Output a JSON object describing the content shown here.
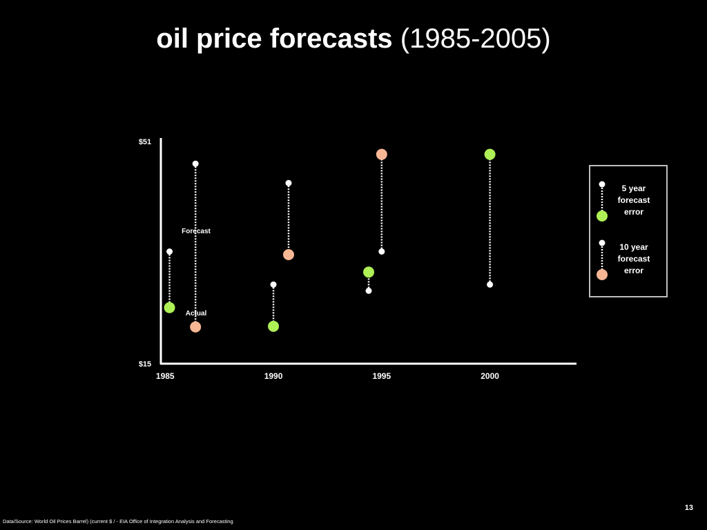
{
  "title": {
    "bold": "oil price forecasts",
    "light": "(1985-2005)"
  },
  "footer": {
    "source": "Data/Source: World Oil Prices Barrel) (current $ / - EIA Office of Integration Analysis and Forecasting"
  },
  "page_number": "13",
  "legend": {
    "five_year": {
      "label": "5 year forecast error",
      "color": "#aef055"
    },
    "ten_year": {
      "label": "10 year forecast error",
      "color": "#f7b795"
    }
  },
  "chart_data": {
    "type": "scatter",
    "title": "oil price forecasts (1985-2005)",
    "xlabel": "",
    "ylabel": "",
    "x_ticks": [
      "1985",
      "1990",
      "1995",
      "2000"
    ],
    "y_ticks": [
      "$51",
      "$15"
    ],
    "xlim": [
      1984.8,
      2004
    ],
    "ylim": [
      15,
      51
    ],
    "grid": false,
    "legend_position": "right",
    "annotations": [
      {
        "text": "Forecast",
        "target": "1985 5-year forecast"
      },
      {
        "text": "Actual",
        "target": "1985 5-year actual"
      }
    ],
    "series": [
      {
        "name": "5 year forecast error",
        "color": "#aef055",
        "points": [
          {
            "x": 1985.2,
            "forecast": 33,
            "actual": 24
          },
          {
            "x": 1990.0,
            "forecast": 27.7,
            "actual": 21
          },
          {
            "x": 1994.4,
            "forecast": 26.7,
            "actual": 29.7
          },
          {
            "x": 2000.0,
            "forecast": 27.7,
            "actual": 48.6
          }
        ]
      },
      {
        "name": "10 year forecast error",
        "color": "#f7b795",
        "points": [
          {
            "x": 1986.4,
            "forecast": 47.1,
            "actual": 20.9
          },
          {
            "x": 1990.7,
            "forecast": 44,
            "actual": 32.5
          },
          {
            "x": 1995.0,
            "forecast": 33,
            "actual": 48.6
          }
        ]
      }
    ]
  }
}
